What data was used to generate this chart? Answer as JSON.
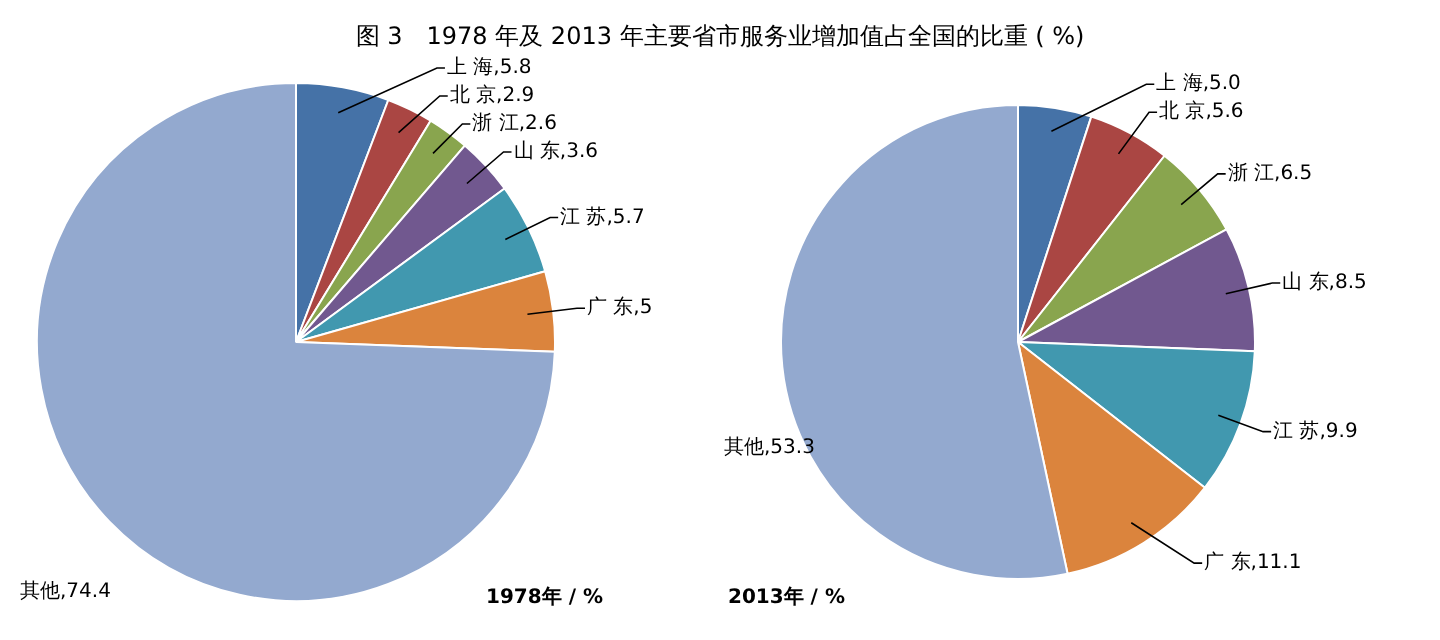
{
  "chart_data": [
    {
      "type": "pie",
      "title": "图 3　1978 年及 2013 年主要省市服务业增加值占全国的比重 ( %)",
      "categories": [
        "上 海",
        "北 京",
        "浙 江",
        "山 东",
        "江 苏",
        "广 东",
        "其他"
      ],
      "values": [
        5.8,
        2.9,
        2.6,
        3.6,
        5.7,
        5,
        74.4
      ],
      "value_labels": [
        "5.8",
        "2.9",
        "2.6",
        "3.6",
        "5.7",
        "5",
        "74.4"
      ],
      "colors": [
        "#4572a7",
        "#aa4643",
        "#89a54e",
        "#71588f",
        "#4198af",
        "#db843d",
        "#93a9cf"
      ],
      "legend": false,
      "annotations": [
        "1978年 / %"
      ]
    },
    {
      "type": "pie",
      "categories": [
        "上 海",
        "北 京",
        "浙 江",
        "山 东",
        "江 苏",
        "广 东",
        "其他"
      ],
      "values": [
        5.0,
        5.6,
        6.5,
        8.5,
        9.9,
        11.1,
        53.3
      ],
      "value_labels": [
        "5.0",
        "5.6",
        "6.5",
        "8.5",
        "9.9",
        "11.1",
        "53.3"
      ],
      "colors": [
        "#4572a7",
        "#aa4643",
        "#89a54e",
        "#71588f",
        "#4198af",
        "#db843d",
        "#93a9cf"
      ],
      "legend": false,
      "annotations": [
        "2013年 / %"
      ]
    }
  ]
}
